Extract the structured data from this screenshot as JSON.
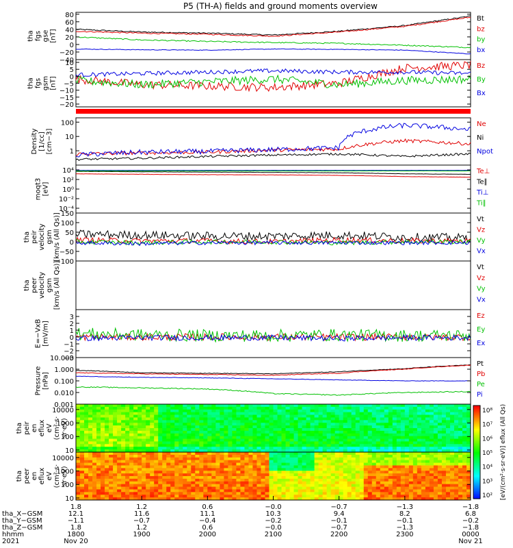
{
  "title": "P5 (TH-A) fields and ground moments overview",
  "colors": {
    "black": "#000000",
    "red": "#e00000",
    "green": "#00c000",
    "blue": "#0000e0",
    "bar_red": "#ff0000"
  },
  "panels": [
    {
      "id": "fgs-gse",
      "ylabel": [
        "tha",
        "fgs",
        "gse",
        "[nT]"
      ],
      "ylim": [
        -40,
        85
      ],
      "log": false,
      "ticks": [
        "80",
        "60",
        "40",
        "20",
        "0",
        "−20",
        "−40"
      ],
      "tick_values": [
        80,
        60,
        40,
        20,
        0,
        -20,
        -40
      ],
      "legend": [
        {
          "text": "Bt",
          "color": "black"
        },
        {
          "text": "bz",
          "color": "red"
        },
        {
          "text": "by",
          "color": "green"
        },
        {
          "text": "bx",
          "color": "blue"
        }
      ]
    },
    {
      "id": "fgs-gsm",
      "ylabel": [
        "tha",
        "fgs",
        "gsm",
        "[nT]"
      ],
      "ylim": [
        -22,
        12
      ],
      "log": false,
      "ticks": [
        "10",
        "5",
        "0",
        "−5",
        "−10",
        "−15",
        "−20"
      ],
      "tick_values": [
        10,
        5,
        0,
        -5,
        -10,
        -15,
        -20
      ],
      "legend": [
        {
          "text": "Bz",
          "color": "red"
        },
        {
          "text": "By",
          "color": "green"
        },
        {
          "text": "Bx",
          "color": "blue"
        }
      ]
    },
    {
      "id": "density",
      "ylabel": [
        "Density",
        "[1/cc]",
        "[cm−3]"
      ],
      "ylim": [
        0.1,
        200
      ],
      "log": true,
      "ticks": [
        "100",
        "10",
        "1"
      ],
      "tick_values": [
        100,
        10,
        1
      ],
      "legend": [
        {
          "text": "Ne",
          "color": "red"
        },
        {
          "text": "Ni",
          "color": "black"
        },
        {
          "text": "Npot",
          "color": "blue"
        }
      ]
    },
    {
      "id": "temperature",
      "ylabel": [
        "moqt3",
        "[eV]"
      ],
      "ylim": [
        1e-05,
        100000
      ],
      "log": true,
      "ticks": [
        "10⁴",
        "10²",
        "10⁰",
        "10⁻²",
        "10⁻⁴"
      ],
      "tick_values": [
        10000,
        100,
        1,
        0.01,
        0.0001
      ],
      "legend": [
        {
          "text": "Te⊥",
          "color": "red"
        },
        {
          "text": "Te∥",
          "color": "black"
        },
        {
          "text": "Ti⊥",
          "color": "blue"
        },
        {
          "text": "Ti∥",
          "color": "green"
        }
      ]
    },
    {
      "id": "peir-velocity",
      "ylabel": [
        "tha",
        "peir",
        "velocity",
        "gsm",
        "[km/s (All Qs)]"
      ],
      "ylim": [
        -100,
        150
      ],
      "log": false,
      "ticks": [
        "150",
        "100",
        "50",
        "0",
        "−50",
        "−100"
      ],
      "tick_values": [
        150,
        100,
        50,
        0,
        -50,
        -100
      ],
      "legend": [
        {
          "text": "Vt",
          "color": "black"
        },
        {
          "text": "Vz",
          "color": "red"
        },
        {
          "text": "Vy",
          "color": "green"
        },
        {
          "text": "Vx",
          "color": "blue"
        }
      ]
    },
    {
      "id": "peer-velocity",
      "ylabel": [
        "tha",
        "peer",
        "velocity",
        "gsm",
        "[km/s (All Qs)]"
      ],
      "ylim": [
        0,
        1
      ],
      "log": false,
      "ticks": [],
      "tick_values": [],
      "legend": [
        {
          "text": "Vt",
          "color": "black"
        },
        {
          "text": "Vz",
          "color": "red"
        },
        {
          "text": "Vy",
          "color": "green"
        },
        {
          "text": "Vx",
          "color": "blue"
        }
      ]
    },
    {
      "id": "efield",
      "ylabel": [
        "E=−VxB",
        "[mV/m]"
      ],
      "ylim": [
        -3,
        4
      ],
      "log": false,
      "ticks": [
        "3",
        "2",
        "1",
        "0",
        "−1",
        "−2",
        "−3"
      ],
      "tick_values": [
        3,
        2,
        1,
        0,
        -1,
        -2,
        -3
      ],
      "legend": [
        {
          "text": "Ez",
          "color": "red"
        },
        {
          "text": "Ey",
          "color": "green"
        },
        {
          "text": "Ex",
          "color": "blue"
        }
      ]
    },
    {
      "id": "pressure",
      "ylabel": [
        "Pressure",
        "[nPa]"
      ],
      "ylim": [
        0.001,
        10
      ],
      "log": true,
      "ticks": [
        "10.000",
        "1.000",
        "0.100",
        "0.010",
        "0.001"
      ],
      "tick_values": [
        10,
        1,
        0.1,
        0.01,
        0.001
      ],
      "legend": [
        {
          "text": "Pt",
          "color": "black"
        },
        {
          "text": "Pb",
          "color": "red"
        },
        {
          "text": "Pe",
          "color": "green"
        },
        {
          "text": "Pi",
          "color": "blue"
        }
      ]
    },
    {
      "id": "peir-eflux",
      "ylabel": [
        "tha",
        "peir",
        "en",
        "eflux",
        "eV",
        "(cm²·s·",
        "sr·eV)"
      ],
      "ylim": [
        7,
        25000
      ],
      "log": true,
      "ticks": [
        "10000",
        "1000",
        "100",
        "10"
      ],
      "tick_values": [
        10000,
        1000,
        100,
        10
      ],
      "legend": []
    },
    {
      "id": "peer-eflux",
      "ylabel": [
        "tha",
        "peer",
        "en",
        "eflux",
        "eV",
        "(cm²·s·",
        "sr·eV)"
      ],
      "ylim": [
        7,
        25000
      ],
      "log": true,
      "ticks": [
        "10000",
        "1000",
        "100",
        "10"
      ],
      "tick_values": [
        10000,
        1000,
        100,
        10
      ],
      "legend": []
    }
  ],
  "colorbar": {
    "ticks": [
      "10⁸",
      "10⁷",
      "10⁶",
      "10⁵",
      "10⁴",
      "10³",
      "10²"
    ],
    "label": "[eV/(cm²·s·sr·eV)] eflux (All Qs)"
  },
  "xaxis": {
    "ticks_top": [
      "1.8",
      "1.2",
      "0.6",
      "−0.0",
      "−0.7",
      "−1.3",
      "−1.8"
    ],
    "rows": [
      {
        "label": "tha_X−GSM",
        "values": [
          "12.1",
          "11.6",
          "11.1",
          "10.3",
          "9.4",
          "8.2",
          "6.8"
        ]
      },
      {
        "label": "tha_Y−GSM",
        "values": [
          "−1.1",
          "−0.7",
          "−0.4",
          "−0.2",
          "−0.1",
          "−0.1",
          "−0.2"
        ]
      },
      {
        "label": "tha_Z−GSM",
        "values": [
          "1.8",
          "1.2",
          "0.6",
          "−0.0",
          "−0.7",
          "−1.3",
          "−1.8"
        ]
      },
      {
        "label": "hhmm",
        "values": [
          "1800",
          "1900",
          "2000",
          "2100",
          "2200",
          "2300",
          "0000"
        ]
      },
      {
        "label": "2021",
        "values": [
          "Nov 20",
          "",
          "",
          "",
          "",
          "",
          "Nov 21"
        ]
      }
    ]
  },
  "chart_data": [
    {
      "type": "line",
      "title": "tha fgs gse",
      "ylabel": "[nT]",
      "ylim": [
        -40,
        85
      ],
      "x": [
        "1800",
        "1900",
        "2000",
        "2100",
        "2200",
        "2300",
        "0000"
      ],
      "series": [
        {
          "name": "Bt",
          "values": [
            40,
            33,
            30,
            25,
            35,
            50,
            75
          ]
        },
        {
          "name": "bz",
          "values": [
            35,
            30,
            27,
            22,
            33,
            48,
            72
          ]
        },
        {
          "name": "by",
          "values": [
            20,
            12,
            8,
            5,
            3,
            -2,
            -8
          ]
        },
        {
          "name": "bx",
          "values": [
            -12,
            -14,
            -15,
            -12,
            -13,
            -15,
            -25
          ]
        }
      ]
    },
    {
      "type": "line",
      "title": "tha fgs gsm",
      "ylabel": "[nT]",
      "ylim": [
        -22,
        12
      ],
      "x": [
        "1800",
        "1900",
        "2000",
        "2100",
        "2200",
        "2300",
        "0000"
      ],
      "series": [
        {
          "name": "Bz",
          "values": [
            -2,
            -6,
            -7,
            -8,
            -5,
            6,
            8
          ]
        },
        {
          "name": "By",
          "values": [
            -3,
            -6,
            -4,
            -2,
            -6,
            -3,
            -2
          ]
        },
        {
          "name": "Bx",
          "values": [
            1,
            2,
            3,
            4,
            3,
            3,
            2
          ]
        }
      ]
    },
    {
      "type": "line",
      "title": "Density",
      "ylabel": "[1/cc]",
      "ylim": [
        0.1,
        200
      ],
      "x": [
        "1800",
        "1900",
        "2000",
        "2100",
        "2200",
        "2300",
        "0000"
      ],
      "series": [
        {
          "name": "Ne",
          "values": [
            0.6,
            0.7,
            0.8,
            1.1,
            1.3,
            5,
            3
          ]
        },
        {
          "name": "Ni",
          "values": [
            0.25,
            0.3,
            0.4,
            0.5,
            0.6,
            0.4,
            0.6
          ]
        },
        {
          "name": "Npot",
          "values": [
            0.5,
            0.8,
            0.9,
            1.2,
            1.6,
            60,
            30
          ]
        }
      ]
    },
    {
      "type": "line",
      "title": "moqt3",
      "ylabel": "[eV]",
      "ylim": [
        1e-05,
        100000
      ],
      "x": [
        "1800",
        "1900",
        "2000",
        "2100",
        "2200",
        "2300",
        "0000"
      ],
      "series": [
        {
          "name": "Te⊥",
          "values": [
            1500,
            1200,
            1000,
            900,
            700,
            400,
            300
          ]
        },
        {
          "name": "Te∥",
          "values": [
            5000,
            4000,
            3500,
            3000,
            2500,
            1500,
            1200
          ]
        },
        {
          "name": "Ti⊥",
          "values": [
            8000,
            8000,
            8000,
            8000,
            8000,
            8000,
            8000
          ]
        },
        {
          "name": "Ti∥",
          "values": [
            6000,
            6000,
            6000,
            6000,
            6000,
            6000,
            6000
          ]
        }
      ]
    },
    {
      "type": "line",
      "title": "tha peir velocity gsm",
      "ylabel": "[km/s (All Qs)]",
      "ylim": [
        -100,
        150
      ],
      "x": [
        "1800",
        "1900",
        "2000",
        "2100",
        "2200",
        "2300",
        "0000"
      ],
      "series": [
        {
          "name": "Vt",
          "values": [
            40,
            35,
            30,
            30,
            35,
            25,
            20
          ]
        },
        {
          "name": "Vz",
          "values": [
            10,
            5,
            5,
            0,
            10,
            5,
            5
          ]
        },
        {
          "name": "Vy",
          "values": [
            0,
            -5,
            0,
            0,
            -5,
            0,
            0
          ]
        },
        {
          "name": "Vx",
          "values": [
            -5,
            -10,
            -5,
            -5,
            -5,
            -5,
            -5
          ]
        }
      ]
    },
    {
      "type": "line",
      "title": "tha peer velocity gsm",
      "ylabel": "[km/s (All Qs)]",
      "series": []
    },
    {
      "type": "line",
      "title": "E=−VxB",
      "ylabel": "[mV/m]",
      "ylim": [
        -3,
        4
      ],
      "x": [
        "1800",
        "1900",
        "2000",
        "2100",
        "2200",
        "2300",
        "0000"
      ],
      "series": [
        {
          "name": "Ez",
          "values": [
            0,
            0,
            0,
            0,
            0,
            0,
            0
          ]
        },
        {
          "name": "Ey",
          "values": [
            0.5,
            0.3,
            0.2,
            0.2,
            0.3,
            0.2,
            0.2
          ]
        },
        {
          "name": "Ex",
          "values": [
            -0.2,
            -0.1,
            -0.1,
            -0.1,
            -0.2,
            -0.1,
            -0.1
          ]
        }
      ]
    },
    {
      "type": "line",
      "title": "Pressure",
      "ylabel": "[nPa]",
      "ylim": [
        0.001,
        10
      ],
      "x": [
        "1800",
        "1900",
        "2000",
        "2100",
        "2200",
        "2300",
        "0000"
      ],
      "series": [
        {
          "name": "Pt",
          "values": [
            0.8,
            0.5,
            0.45,
            0.4,
            0.6,
            1.1,
            2.3
          ]
        },
        {
          "name": "Pb",
          "values": [
            0.5,
            0.4,
            0.35,
            0.3,
            0.45,
            1.0,
            2.2
          ]
        },
        {
          "name": "Pe",
          "values": [
            0.03,
            0.025,
            0.02,
            0.008,
            0.006,
            0.01,
            0.012
          ]
        },
        {
          "name": "Pi",
          "values": [
            0.25,
            0.2,
            0.18,
            0.15,
            0.12,
            0.1,
            0.1
          ]
        }
      ]
    },
    {
      "type": "heatmap",
      "title": "tha peir en eflux",
      "ylabel": "eV",
      "ylim": [
        7,
        25000
      ],
      "zlim": [
        100,
        100000000
      ],
      "zlog": true
    },
    {
      "type": "heatmap",
      "title": "tha peer en eflux",
      "ylabel": "eV",
      "ylim": [
        7,
        25000
      ],
      "zlim": [
        100,
        100000000
      ],
      "zlog": true
    }
  ]
}
